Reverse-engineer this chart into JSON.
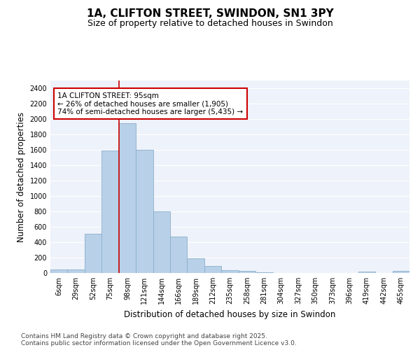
{
  "title_line1": "1A, CLIFTON STREET, SWINDON, SN1 3PY",
  "title_line2": "Size of property relative to detached houses in Swindon",
  "xlabel": "Distribution of detached houses by size in Swindon",
  "ylabel": "Number of detached properties",
  "categories": [
    "6sqm",
    "29sqm",
    "52sqm",
    "75sqm",
    "98sqm",
    "121sqm",
    "144sqm",
    "166sqm",
    "189sqm",
    "212sqm",
    "235sqm",
    "258sqm",
    "281sqm",
    "304sqm",
    "327sqm",
    "350sqm",
    "373sqm",
    "396sqm",
    "419sqm",
    "442sqm",
    "465sqm"
  ],
  "values": [
    50,
    50,
    510,
    1590,
    1950,
    1600,
    800,
    470,
    190,
    90,
    35,
    30,
    5,
    0,
    0,
    0,
    0,
    0,
    20,
    0,
    25
  ],
  "bar_color": "#b8d0e8",
  "bar_edge_color": "#8ab0cc",
  "plot_bg_color": "#eef2fa",
  "fig_bg_color": "#ffffff",
  "grid_color": "#ffffff",
  "annotation_text": "1A CLIFTON STREET: 95sqm\n← 26% of detached houses are smaller (1,905)\n74% of semi-detached houses are larger (5,435) →",
  "annotation_box_color": "#ffffff",
  "annotation_box_edge": "#cc0000",
  "vline_color": "#cc0000",
  "vline_idx": 3.5,
  "ylim": [
    0,
    2500
  ],
  "yticks": [
    0,
    200,
    400,
    600,
    800,
    1000,
    1200,
    1400,
    1600,
    1800,
    2000,
    2200,
    2400
  ],
  "footer_text": "Contains HM Land Registry data © Crown copyright and database right 2025.\nContains public sector information licensed under the Open Government Licence v3.0.",
  "title_fontsize": 11,
  "subtitle_fontsize": 9,
  "axis_label_fontsize": 8.5,
  "tick_fontsize": 7,
  "annotation_fontsize": 7.5,
  "footer_fontsize": 6.5
}
